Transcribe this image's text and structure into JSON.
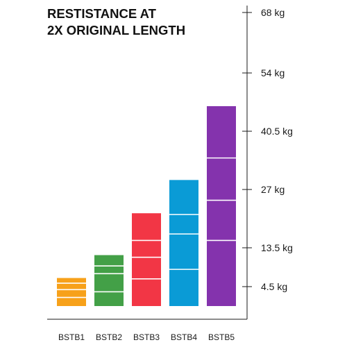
{
  "chart_data": {
    "type": "bar",
    "title_lines": [
      "RESTISTANCE AT",
      "2X ORIGINAL LENGTH"
    ],
    "categories": [
      "BSTB1",
      "BSTB2",
      "BSTB3",
      "BSTB4",
      "BSTB5"
    ],
    "values": [
      6.5,
      11.8,
      21.5,
      29.2,
      46.3
    ],
    "segment_breaks": [
      [
        2.0,
        3.8,
        5.3
      ],
      [
        3.3,
        7.5,
        9.3
      ],
      [
        6.3,
        11.3,
        15.2
      ],
      [
        8.5,
        16.7,
        21.2
      ],
      [
        15.2,
        24.5,
        34.3
      ]
    ],
    "colors": [
      "#f7a11a",
      "#43a047",
      "#f23645",
      "#0a9bd6",
      "#8433ad"
    ],
    "y_ticks": [
      4.5,
      13.5,
      27,
      40.5,
      54,
      68
    ],
    "y_tick_labels": [
      "4.5 kg",
      "13.5 kg",
      "27 kg",
      "40.5 kg",
      "54 kg",
      "68 kg"
    ],
    "ylim": [
      0,
      68
    ],
    "xlabel": "",
    "ylabel": "",
    "y_axis_side": "right",
    "grid": false
  }
}
